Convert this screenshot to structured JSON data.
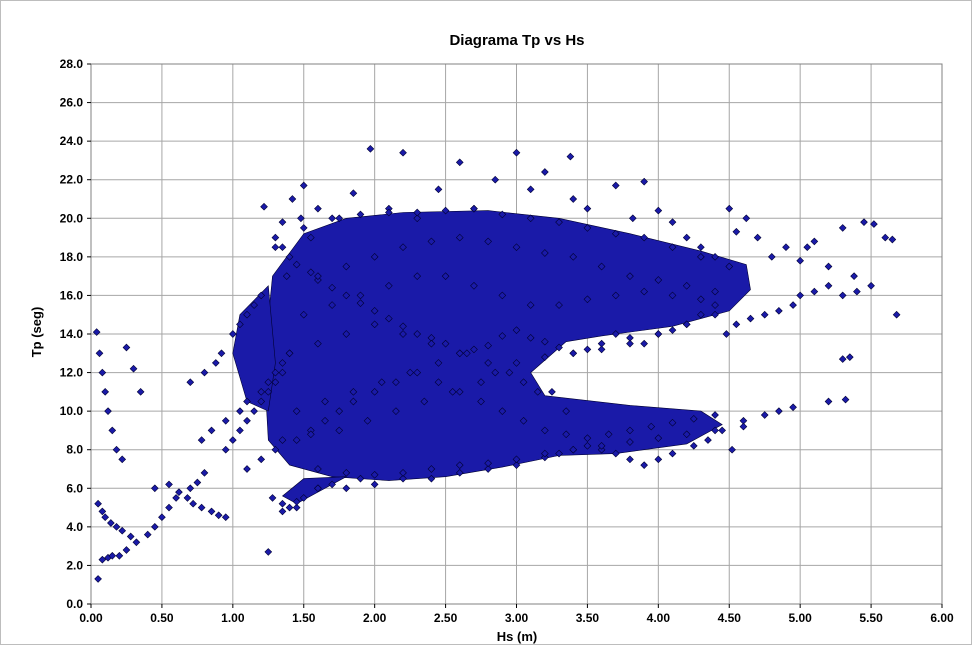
{
  "chart_data": {
    "type": "scatter",
    "title": "Diagrama Tp vs Hs",
    "xlabel": "Hs (m)",
    "ylabel": "Tp (seg)",
    "xlim": [
      0,
      6
    ],
    "ylim": [
      0,
      28
    ],
    "x_ticks": [
      "0.00",
      "0.50",
      "1.00",
      "1.50",
      "2.00",
      "2.50",
      "3.00",
      "3.50",
      "4.00",
      "4.50",
      "5.00",
      "5.50",
      "6.00"
    ],
    "y_ticks": [
      "0.0",
      "2.0",
      "4.0",
      "6.0",
      "8.0",
      "10.0",
      "12.0",
      "14.0",
      "16.0",
      "18.0",
      "20.0",
      "22.0",
      "24.0",
      "26.0",
      "28.0"
    ],
    "grid": true,
    "legend": "none",
    "marker": "diamond",
    "colors": {
      "marker_fill": "#1a1aa8",
      "marker_edge": "#000033",
      "grid": "#a6a6a6",
      "plot_border": "#808080"
    },
    "series": [
      {
        "x": [
          0.04,
          0.06,
          0.08,
          0.1,
          0.12,
          0.15,
          0.18,
          0.22,
          0.25,
          0.3,
          0.35,
          0.05,
          0.08,
          0.1,
          0.14,
          0.18,
          0.22,
          0.28,
          0.05,
          0.08,
          0.12,
          0.15,
          0.2,
          0.25,
          0.32,
          0.4,
          0.45,
          0.5,
          0.55,
          0.6,
          0.7,
          0.75,
          0.8,
          0.45,
          0.55,
          0.62,
          0.68,
          0.72,
          0.78,
          0.85,
          0.9,
          0.95,
          0.7,
          0.8,
          0.88,
          0.92,
          1.0,
          1.05,
          1.1,
          1.15,
          1.2,
          0.78,
          0.85,
          0.95,
          1.05,
          1.1,
          1.2,
          1.25,
          1.3,
          1.35,
          1.4,
          1.22,
          1.3,
          1.35,
          1.38,
          1.42,
          1.48,
          1.5,
          1.55,
          1.6,
          1.25,
          1.28,
          1.35,
          1.45,
          1.6,
          1.75,
          1.85,
          1.97,
          2.1,
          2.2,
          2.3,
          2.45,
          2.6,
          2.7,
          2.85,
          3.0,
          3.1,
          3.2,
          3.38,
          3.4,
          3.5,
          3.7,
          3.82,
          3.9,
          4.0,
          4.1,
          4.2,
          4.3,
          4.4,
          4.5,
          4.55,
          4.62,
          4.7,
          4.8,
          4.9,
          5.0,
          5.05,
          5.1,
          5.2,
          5.3,
          5.38,
          5.45,
          5.52,
          5.6,
          5.65,
          5.68,
          5.5,
          5.4,
          5.3,
          5.2,
          5.1,
          5.0,
          4.95,
          4.85,
          4.75,
          4.65,
          4.55,
          4.48,
          4.4,
          4.3,
          4.2,
          4.1,
          4.0,
          3.9,
          3.8,
          3.7,
          3.6,
          3.5,
          3.4,
          3.3,
          3.2,
          3.1,
          3.0,
          2.9,
          2.8,
          2.7,
          2.6,
          2.5,
          2.4,
          2.3,
          2.2,
          2.1,
          2.0,
          1.9,
          1.8,
          1.7,
          1.6,
          1.55,
          1.45,
          1.4,
          1.35,
          1.3,
          5.3,
          5.35,
          5.32,
          5.2,
          4.95,
          4.85,
          4.75,
          4.6,
          4.52,
          4.45,
          4.35,
          4.25,
          4.1,
          4.0,
          3.9,
          3.8,
          3.7,
          3.6,
          3.5,
          3.4,
          3.3,
          3.2,
          3.0,
          2.8,
          2.6,
          2.4,
          2.2,
          2.0,
          1.9,
          1.8,
          1.7,
          1.6,
          1.5,
          1.45,
          1.4,
          1.35,
          0.95,
          1.0,
          1.05,
          1.1,
          1.15,
          1.2,
          1.25,
          1.3,
          1.35,
          1.1,
          1.2,
          1.3,
          1.45,
          1.55,
          1.65,
          1.75,
          1.85,
          2.0,
          2.15,
          2.3,
          2.45,
          2.6,
          2.75,
          2.9,
          3.05,
          3.2,
          3.35,
          3.5,
          3.65,
          3.8,
          3.95,
          4.1,
          4.25,
          4.4,
          1.6,
          1.8,
          2.0,
          2.2,
          2.4,
          2.6,
          2.8,
          3.0,
          3.2,
          3.4,
          3.6,
          3.8,
          4.0,
          4.2,
          4.4,
          1.5,
          1.7,
          1.9,
          2.1,
          2.3,
          2.5,
          2.7,
          2.9,
          3.1,
          3.3,
          3.5,
          3.7,
          3.9,
          4.1,
          4.3,
          1.4,
          1.6,
          1.8,
          2.0,
          2.2,
          2.4,
          2.6,
          2.8,
          3.0,
          3.2,
          3.4,
          3.6,
          3.8,
          4.0,
          4.2,
          4.4,
          1.45,
          1.65,
          1.85,
          2.05,
          2.25,
          2.45,
          2.65,
          2.85,
          3.05,
          3.25,
          1.35,
          1.55,
          1.75,
          1.95,
          2.15,
          2.35,
          2.55,
          2.75,
          2.95,
          3.15,
          3.35,
          1.5,
          1.7,
          1.9,
          2.1,
          2.3,
          2.5,
          2.7,
          2.9,
          3.1,
          3.3,
          3.5,
          3.7,
          3.9,
          4.1,
          4.3,
          4.5,
          1.6,
          1.8,
          2.0,
          2.2,
          2.4,
          2.6,
          2.8,
          3.0,
          3.2,
          3.4,
          3.6,
          3.8,
          4.0,
          4.2,
          4.4,
          4.6
        ],
        "y": [
          14.1,
          13.0,
          12.0,
          11.0,
          10.0,
          9.0,
          8.0,
          7.5,
          13.3,
          12.2,
          11.0,
          5.2,
          4.8,
          4.5,
          4.2,
          4.0,
          3.8,
          3.5,
          1.3,
          2.3,
          2.4,
          2.5,
          2.5,
          2.8,
          3.2,
          3.6,
          4.0,
          4.5,
          5.0,
          5.5,
          6.0,
          6.3,
          6.8,
          6.0,
          6.2,
          5.8,
          5.5,
          5.2,
          5.0,
          4.8,
          4.6,
          4.5,
          11.5,
          12.0,
          12.5,
          13.0,
          14.0,
          14.5,
          15.0,
          15.5,
          16.0,
          8.5,
          9.0,
          9.5,
          10.0,
          10.5,
          11.0,
          11.5,
          12.0,
          12.5,
          13.0,
          20.6,
          18.5,
          19.8,
          17.0,
          21.0,
          20.0,
          21.7,
          19.0,
          20.5,
          2.7,
          5.5,
          5.2,
          5.0,
          6.0,
          20.0,
          21.3,
          23.6,
          20.5,
          23.4,
          20.0,
          21.5,
          22.9,
          20.5,
          22.0,
          23.4,
          21.5,
          22.4,
          23.2,
          21.0,
          20.5,
          21.7,
          20.0,
          21.9,
          20.4,
          19.8,
          19.0,
          18.5,
          18.0,
          20.5,
          19.3,
          20.0,
          19.0,
          18.0,
          18.5,
          17.8,
          18.5,
          18.8,
          17.5,
          19.5,
          17.0,
          19.8,
          19.7,
          19.0,
          18.9,
          15.0,
          16.5,
          16.2,
          16.0,
          16.5,
          16.2,
          16.0,
          15.5,
          15.2,
          15.0,
          14.8,
          14.5,
          14.0,
          15.5,
          15.0,
          14.5,
          14.2,
          14.0,
          13.5,
          13.8,
          14.0,
          13.5,
          13.2,
          13.0,
          13.3,
          13.6,
          13.8,
          14.2,
          13.9,
          13.4,
          13.2,
          13.0,
          13.5,
          13.8,
          14.0,
          14.4,
          14.8,
          15.2,
          15.6,
          16.0,
          16.4,
          16.8,
          17.2,
          17.6,
          18.0,
          18.5,
          19.0,
          12.7,
          12.8,
          10.6,
          10.5,
          10.2,
          10.0,
          9.8,
          9.5,
          8.0,
          9.0,
          8.5,
          8.2,
          7.8,
          7.5,
          7.2,
          7.5,
          7.8,
          8.0,
          8.2,
          8.0,
          7.8,
          7.6,
          7.2,
          7.0,
          6.8,
          6.5,
          6.5,
          6.2,
          6.5,
          6.0,
          6.2,
          6.0,
          5.5,
          5.3,
          5.0,
          4.8,
          8.0,
          8.5,
          9.0,
          9.5,
          10.0,
          10.5,
          11.0,
          11.5,
          12.0,
          7.0,
          7.5,
          8.0,
          8.5,
          9.0,
          9.5,
          10.0,
          10.5,
          11.0,
          11.5,
          12.0,
          11.5,
          11.0,
          10.5,
          10.0,
          9.5,
          9.0,
          8.8,
          8.6,
          8.8,
          9.0,
          9.2,
          9.4,
          9.6,
          9.8,
          17.0,
          17.5,
          18.0,
          18.5,
          18.8,
          19.0,
          18.8,
          18.5,
          18.2,
          18.0,
          17.5,
          17.0,
          16.8,
          16.5,
          16.2,
          15.0,
          15.5,
          16.0,
          16.5,
          17.0,
          17.0,
          16.5,
          16.0,
          15.5,
          15.5,
          15.8,
          16.0,
          16.2,
          16.0,
          15.8,
          13.0,
          13.5,
          14.0,
          14.5,
          14.0,
          13.5,
          13.0,
          12.5,
          12.5,
          12.8,
          13.0,
          13.2,
          13.5,
          14.0,
          14.5,
          15.0,
          10.0,
          10.5,
          11.0,
          11.5,
          12.0,
          12.5,
          13.0,
          12.0,
          11.5,
          11.0,
          8.5,
          8.8,
          9.0,
          9.5,
          10.0,
          10.5,
          11.0,
          11.5,
          12.0,
          11.0,
          10.0,
          19.5,
          20.0,
          20.2,
          20.3,
          20.3,
          20.4,
          20.5,
          20.2,
          20.0,
          19.8,
          19.5,
          19.2,
          19.0,
          18.5,
          18.0,
          17.5,
          7.0,
          6.8,
          6.7,
          6.8,
          7.0,
          7.2,
          7.3,
          7.5,
          7.8,
          8.0,
          8.2,
          8.4,
          8.6,
          8.8,
          9.0,
          9.2
        ]
      }
    ]
  }
}
